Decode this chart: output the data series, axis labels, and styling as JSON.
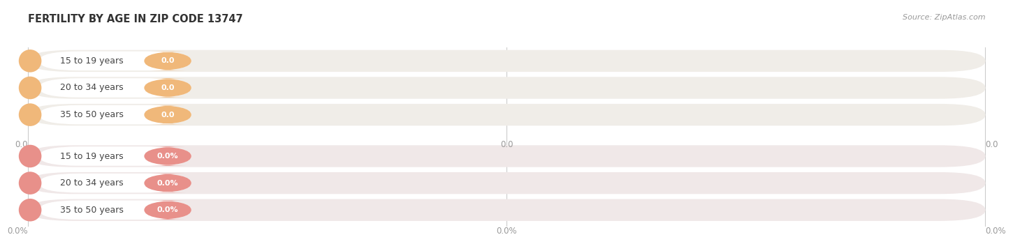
{
  "title": "FERTILITY BY AGE IN ZIP CODE 13747",
  "source_text": "Source: ZipAtlas.com",
  "top_group": {
    "categories": [
      "15 to 19 years",
      "20 to 34 years",
      "35 to 50 years"
    ],
    "value_labels": [
      "0.0",
      "0.0",
      "0.0"
    ],
    "bar_bg_color": "#f0ede8",
    "circle_color": "#f0b87a",
    "label_bg_color": "#ffffff",
    "badge_color": "#f0b87a",
    "x_tick_labels": [
      "0.0",
      "0.0",
      "0.0"
    ]
  },
  "bottom_group": {
    "categories": [
      "15 to 19 years",
      "20 to 34 years",
      "35 to 50 years"
    ],
    "value_labels": [
      "0.0%",
      "0.0%",
      "0.0%"
    ],
    "bar_bg_color": "#f0e8e8",
    "circle_color": "#e8908a",
    "label_bg_color": "#ffffff",
    "badge_color": "#e8908a",
    "x_tick_labels": [
      "0.0%",
      "0.0%",
      "0.0%"
    ]
  },
  "background_color": "#ffffff",
  "label_color": "#444444",
  "tick_color": "#999999",
  "title_color": "#333333",
  "title_fontsize": 10.5,
  "label_fontsize": 9,
  "tick_fontsize": 8.5,
  "source_fontsize": 8,
  "source_color": "#999999"
}
